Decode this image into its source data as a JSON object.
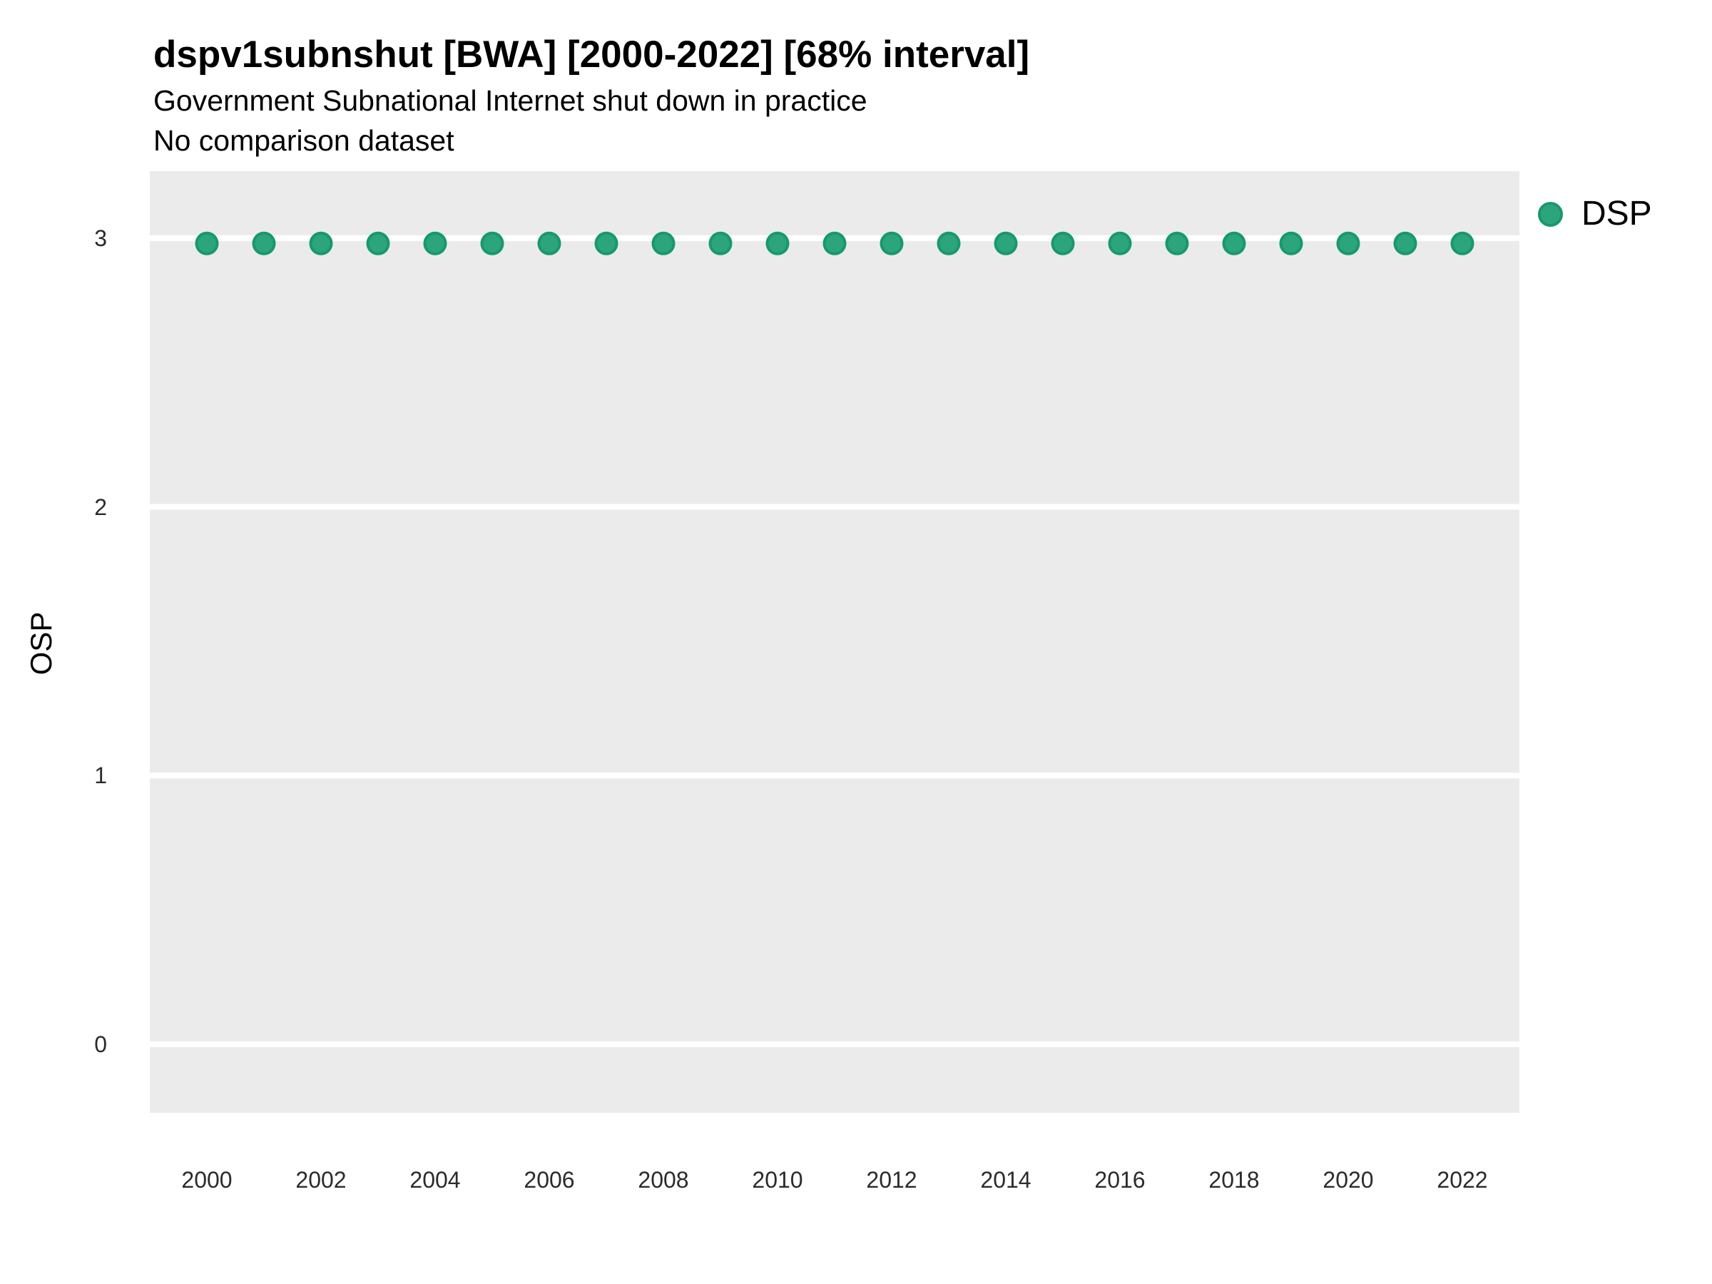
{
  "chart_data": {
    "type": "scatter",
    "title": "dspv1subnshut [BWA] [2000-2022] [68% interval]",
    "subtitle": "Government Subnational Internet shut down in practice",
    "subtitle2": "No comparison dataset",
    "xlabel": "",
    "ylabel": "OSP",
    "xlim": [
      1999,
      2023
    ],
    "ylim": [
      -0.255,
      3.249
    ],
    "x_ticks": [
      2000,
      2002,
      2004,
      2006,
      2008,
      2010,
      2012,
      2014,
      2016,
      2018,
      2020,
      2022
    ],
    "y_ticks": [
      0,
      1,
      2,
      3
    ],
    "grid": "horizontal-major-only",
    "gridline_color": "#FFFFFF",
    "panel_background": "#EBEBEB",
    "legend_position": "right",
    "series": [
      {
        "name": "DSP",
        "point_fill": "#2CA57D",
        "point_stroke": "#18996B",
        "x": [
          2000,
          2001,
          2002,
          2003,
          2004,
          2005,
          2006,
          2007,
          2008,
          2009,
          2010,
          2011,
          2012,
          2013,
          2014,
          2015,
          2016,
          2017,
          2018,
          2019,
          2020,
          2021,
          2022
        ],
        "y": [
          2.98,
          2.98,
          2.98,
          2.98,
          2.98,
          2.98,
          2.98,
          2.98,
          2.98,
          2.98,
          2.98,
          2.98,
          2.98,
          2.98,
          2.98,
          2.98,
          2.98,
          2.98,
          2.98,
          2.98,
          2.98,
          2.98,
          2.98
        ]
      }
    ]
  }
}
